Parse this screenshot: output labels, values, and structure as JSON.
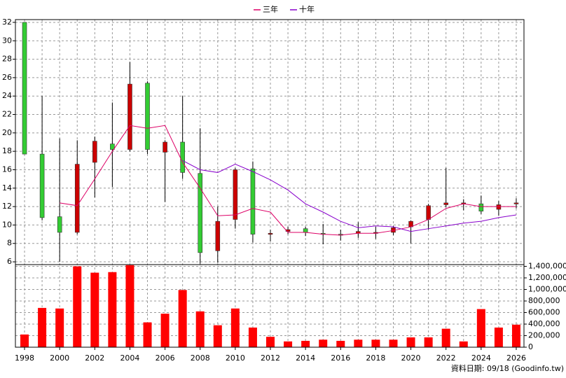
{
  "chart_data": {
    "type": "candlestick",
    "x": [
      1998,
      1999,
      2000,
      2001,
      2002,
      2003,
      2004,
      2005,
      2006,
      2007,
      2008,
      2009,
      2010,
      2011,
      2012,
      2013,
      2014,
      2015,
      2016,
      2017,
      2018,
      2019,
      2020,
      2021,
      2022,
      2023,
      2024,
      2025,
      2026
    ],
    "xlim": [
      1997.48,
      2026.44
    ],
    "xticks": [
      1998,
      2000,
      2002,
      2004,
      2006,
      2008,
      2010,
      2012,
      2014,
      2016,
      2018,
      2020,
      2022,
      2024,
      2026
    ],
    "open": [
      32,
      17.7,
      10.9,
      9.2,
      16.8,
      18.8,
      18.2,
      25.4,
      17.9,
      19,
      15.6,
      7.2,
      10.6,
      16.1,
      9,
      9.3,
      9.6,
      9.1,
      9,
      9.1,
      9.1,
      9.2,
      9.8,
      10.6,
      12.2,
      12.3,
      12.3,
      11.7,
      12.3
    ],
    "high": [
      32,
      24,
      19.4,
      19.2,
      19.6,
      23.3,
      27.7,
      25.6,
      19.2,
      24,
      20.5,
      12,
      16.2,
      16.9,
      9.5,
      9.8,
      9.8,
      10.1,
      9.5,
      10.3,
      9.8,
      9.9,
      10.5,
      12.3,
      16.2,
      12.8,
      13.2,
      12.6,
      12.9
    ],
    "low": [
      17.7,
      10.5,
      6,
      9,
      13,
      14.1,
      18,
      17.7,
      12.5,
      15,
      5.8,
      5.9,
      9.6,
      8.1,
      8.2,
      9,
      8.8,
      7.9,
      8.3,
      8.6,
      8.5,
      8.9,
      8,
      9.5,
      11.9,
      11.6,
      11.2,
      11,
      11.8
    ],
    "close": [
      17.7,
      10.8,
      9.2,
      16.6,
      19.1,
      18.2,
      25.3,
      18.2,
      19,
      15.7,
      7,
      10.4,
      16,
      9,
      9.1,
      9.5,
      9.2,
      9,
      8.9,
      9.3,
      9.2,
      9.7,
      10.4,
      12.1,
      12.4,
      12.4,
      11.5,
      12.2,
      12.4
    ],
    "up_color": "#cc0000",
    "down_color": "#33cc33",
    "ylim": [
      5.7,
      32.3
    ],
    "yticks": [
      6,
      8,
      10,
      12,
      14,
      16,
      18,
      20,
      22,
      24,
      26,
      28,
      30,
      32
    ],
    "series": [
      {
        "name": "三年",
        "color": "#dd0066",
        "values": [
          null,
          null,
          12.4,
          12.1,
          15,
          18,
          20.8,
          20.5,
          20.8,
          16.8,
          14,
          11,
          11.1,
          11.8,
          11.4,
          9.2,
          9.2,
          9,
          8.9,
          9.1,
          9.1,
          9.4,
          9.8,
          10.6,
          11.8,
          12.3,
          12,
          12,
          12
        ]
      },
      {
        "name": "十年",
        "color": "#8800cc",
        "values": [
          null,
          null,
          null,
          null,
          null,
          null,
          null,
          null,
          null,
          17,
          16,
          15.7,
          16.6,
          15.8,
          14.9,
          13.8,
          12.3,
          11.4,
          10.4,
          9.7,
          9.9,
          9.8,
          9.3,
          9.6,
          9.9,
          10.2,
          10.4,
          10.8,
          11.1
        ]
      }
    ],
    "volume": {
      "color": "#ff0000",
      "values": [
        220000,
        680000,
        670000,
        1400000,
        1290000,
        1300000,
        1420000,
        430000,
        580000,
        990000,
        620000,
        380000,
        670000,
        340000,
        180000,
        100000,
        110000,
        130000,
        110000,
        130000,
        130000,
        130000,
        170000,
        170000,
        320000,
        100000,
        660000,
        340000,
        390000
      ],
      "ylim": [
        0,
        1430000
      ],
      "yticks": [
        0,
        {
          "value": 200000,
          "label": "200,000"
        },
        {
          "value": 400000,
          "label": "400,000"
        },
        {
          "value": 600000,
          "label": "600,000"
        },
        {
          "value": 800000,
          "label": "800,000"
        },
        {
          "value": 1000000,
          "label": "1,000,000"
        },
        {
          "value": 1200000,
          "label": "1,200,000"
        },
        {
          "value": 1400000,
          "label": "1,400,000"
        }
      ]
    },
    "grid": true,
    "footer": "資料日期: 09/18 (Goodinfo.tw)"
  }
}
